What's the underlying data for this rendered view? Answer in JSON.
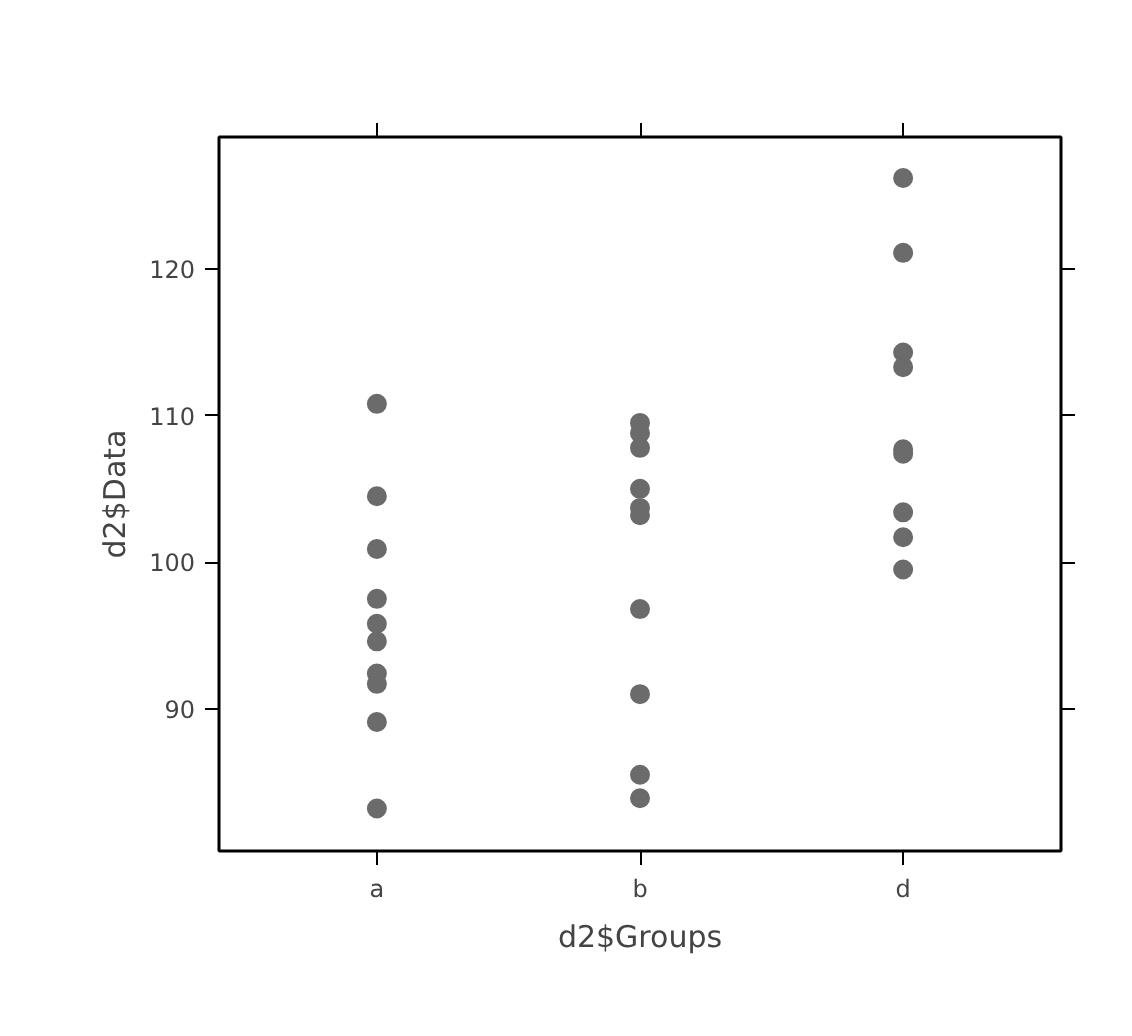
{
  "chart_data": {
    "type": "scatter",
    "xlabel": "d2$Groups",
    "ylabel": "d2$Data",
    "categories": [
      "a",
      "b",
      "d"
    ],
    "series": [
      {
        "color": "#6b6b6b",
        "x": [
          "a",
          "a",
          "a",
          "a",
          "a",
          "a",
          "a",
          "a",
          "a",
          "a",
          "b",
          "b",
          "b",
          "b",
          "b",
          "b",
          "b",
          "b",
          "b",
          "b",
          "d",
          "d",
          "d",
          "d",
          "d",
          "d",
          "d",
          "d",
          "d"
        ],
        "values": [
          110.8,
          104.5,
          100.9,
          97.5,
          95.8,
          94.6,
          92.4,
          91.7,
          89.1,
          83.2,
          109.5,
          108.8,
          107.8,
          105.0,
          103.7,
          103.2,
          96.8,
          91.0,
          85.5,
          83.9,
          126.2,
          121.1,
          114.3,
          113.3,
          107.7,
          107.4,
          103.4,
          101.7,
          99.5
        ]
      }
    ],
    "ylim": [
      80.3,
      129
    ],
    "yticks": [
      90,
      100,
      110,
      120
    ],
    "grid": false,
    "marker": "circle"
  }
}
